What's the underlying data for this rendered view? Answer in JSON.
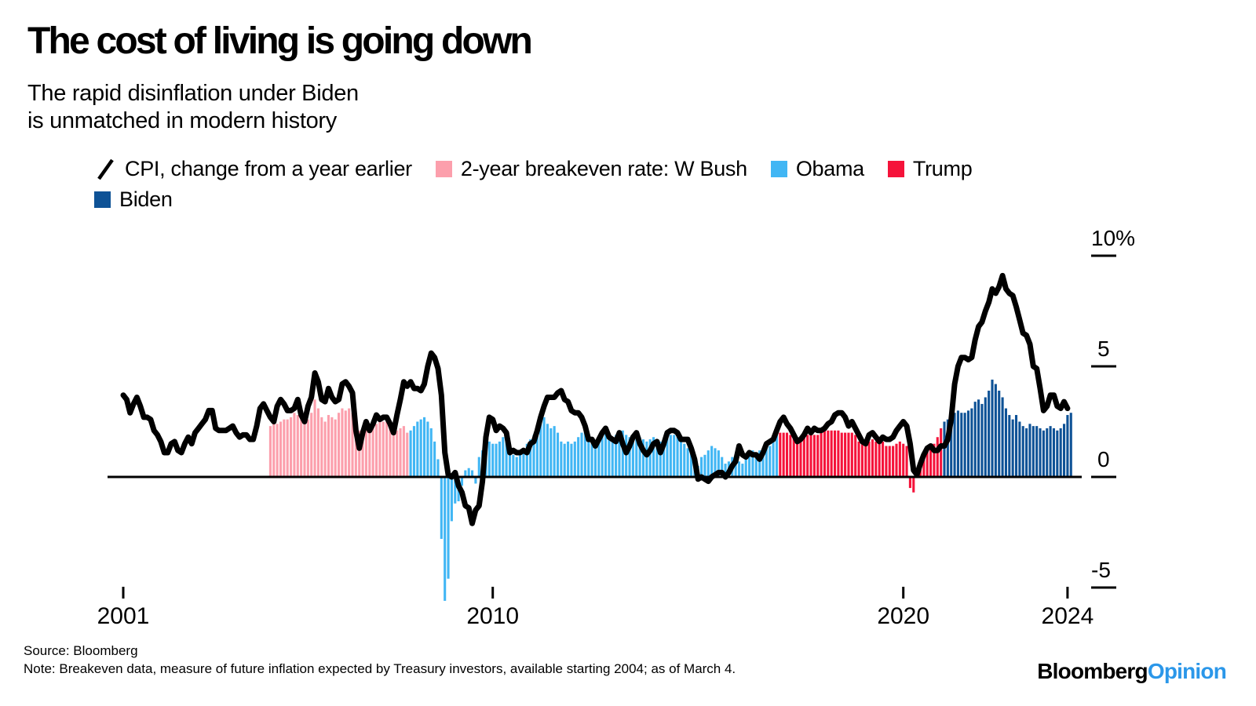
{
  "chart_data": {
    "type": "mixed",
    "title": "The cost of living is going down",
    "subtitle": [
      "The rapid disinflation under Biden",
      "is unmatched in modern history"
    ],
    "legend": {
      "position": "top",
      "items": [
        {
          "label": "CPI, change from a year earlier",
          "swatch": "line",
          "color": "#000000"
        },
        {
          "label": "2-year breakeven rate: W Bush",
          "swatch": "square",
          "color": "#FC9FAC"
        },
        {
          "label": "Obama",
          "swatch": "square",
          "color": "#41B6F4"
        },
        {
          "label": "Trump",
          "swatch": "square",
          "color": "#F5133A"
        },
        {
          "label": "Biden",
          "swatch": "square",
          "color": "#0E5296"
        }
      ]
    },
    "grid": false,
    "ylim": [
      -7,
      10
    ],
    "xlim": [
      2001,
      2024.4
    ],
    "y_ticks": [
      {
        "label": "10%",
        "value": 10
      },
      {
        "label": "5",
        "value": 5
      },
      {
        "label": "0",
        "value": 0
      },
      {
        "label": "-5",
        "value": -5
      }
    ],
    "x_ticks": [
      {
        "label": "2001",
        "year": 2001
      },
      {
        "label": "2010",
        "year": 2010
      },
      {
        "label": "2020",
        "year": 2020
      },
      {
        "label": "2024",
        "year": 2024
      }
    ],
    "line_series": {
      "name": "CPI, change from a year earlier",
      "color": "#000000",
      "start_year": 2001.0,
      "points_per_year": 12,
      "values": [
        3.7,
        3.5,
        2.9,
        3.3,
        3.6,
        3.2,
        2.7,
        2.7,
        2.6,
        2.1,
        1.9,
        1.6,
        1.1,
        1.1,
        1.5,
        1.6,
        1.2,
        1.1,
        1.5,
        1.8,
        1.5,
        2.0,
        2.2,
        2.4,
        2.6,
        3.0,
        3.0,
        2.2,
        2.1,
        2.1,
        2.1,
        2.2,
        2.3,
        2.0,
        1.8,
        1.9,
        1.9,
        1.7,
        1.7,
        2.3,
        3.1,
        3.3,
        3.0,
        2.7,
        2.5,
        3.2,
        3.5,
        3.3,
        3.0,
        3.0,
        3.1,
        3.5,
        2.8,
        2.5,
        3.2,
        3.6,
        4.7,
        4.3,
        3.5,
        3.4,
        4.0,
        3.6,
        3.4,
        3.5,
        4.2,
        4.3,
        4.1,
        3.8,
        2.1,
        1.3,
        2.0,
        2.5,
        2.1,
        2.4,
        2.8,
        2.6,
        2.7,
        2.7,
        2.4,
        2.0,
        2.8,
        3.5,
        4.3,
        4.1,
        4.3,
        4.0,
        4.0,
        3.9,
        4.2,
        5.0,
        5.6,
        5.4,
        4.9,
        3.7,
        1.1,
        0.1,
        0.0,
        0.2,
        -0.4,
        -0.7,
        -1.3,
        -1.4,
        -2.1,
        -1.5,
        -1.3,
        -0.2,
        1.8,
        2.7,
        2.6,
        2.1,
        2.3,
        2.2,
        2.0,
        1.1,
        1.2,
        1.1,
        1.1,
        1.2,
        1.1,
        1.5,
        1.6,
        2.1,
        2.7,
        3.2,
        3.6,
        3.6,
        3.6,
        3.8,
        3.9,
        3.5,
        3.4,
        3.0,
        2.9,
        2.9,
        2.7,
        2.3,
        1.7,
        1.7,
        1.4,
        1.7,
        2.0,
        2.2,
        1.8,
        1.7,
        1.6,
        2.0,
        1.5,
        1.1,
        1.4,
        1.8,
        2.0,
        1.5,
        1.2,
        1.0,
        1.2,
        1.5,
        1.6,
        1.1,
        1.5,
        2.0,
        2.1,
        2.1,
        2.0,
        1.7,
        1.7,
        1.7,
        1.3,
        0.8,
        -0.1,
        0.0,
        -0.1,
        -0.2,
        0.0,
        0.1,
        0.2,
        0.2,
        0.0,
        0.2,
        0.5,
        0.7,
        1.4,
        1.0,
        0.9,
        1.1,
        1.0,
        1.0,
        0.8,
        1.1,
        1.5,
        1.6,
        1.7,
        2.1,
        2.5,
        2.7,
        2.4,
        2.2,
        1.9,
        1.6,
        1.7,
        1.9,
        2.2,
        2.0,
        2.2,
        2.1,
        2.1,
        2.2,
        2.4,
        2.5,
        2.8,
        2.9,
        2.9,
        2.7,
        2.3,
        2.5,
        2.2,
        1.9,
        1.6,
        1.5,
        1.9,
        2.0,
        1.8,
        1.6,
        1.8,
        1.7,
        1.7,
        1.8,
        2.1,
        2.3,
        2.5,
        2.3,
        1.5,
        0.3,
        0.1,
        0.6,
        1.0,
        1.3,
        1.4,
        1.2,
        1.2,
        1.4,
        1.4,
        1.7,
        2.6,
        4.2,
        5.0,
        5.4,
        5.4,
        5.3,
        5.4,
        6.2,
        6.8,
        7.0,
        7.5,
        7.9,
        8.5,
        8.3,
        8.6,
        9.1,
        8.5,
        8.3,
        8.2,
        7.7,
        7.1,
        6.5,
        6.4,
        6.0,
        5.0,
        4.9,
        4.0,
        3.0,
        3.2,
        3.7,
        3.7,
        3.2,
        3.1,
        3.4,
        3.1
      ]
    },
    "bar_series": {
      "name": "2-year breakeven rate",
      "start_year": 2004.5833,
      "points_per_year": 12,
      "segments": [
        {
          "president": "W Bush",
          "color": "#FC9FAC",
          "months": 41
        },
        {
          "president": "Obama",
          "color": "#41B6F4",
          "months": 108
        },
        {
          "president": "Trump",
          "color": "#F5133A",
          "months": 48
        },
        {
          "president": "Biden",
          "color": "#0E5296",
          "months": 38
        }
      ],
      "values": [
        2.3,
        2.5,
        2.4,
        2.5,
        2.6,
        2.6,
        2.7,
        2.9,
        2.8,
        2.6,
        2.5,
        2.6,
        2.9,
        3.5,
        3.1,
        2.7,
        2.5,
        2.8,
        2.7,
        2.6,
        2.9,
        3.1,
        3.0,
        3.1,
        2.9,
        2.3,
        2.1,
        2.2,
        2.3,
        2.2,
        2.4,
        2.4,
        2.5,
        2.5,
        2.5,
        2.4,
        2.2,
        2.1,
        2.2,
        2.3,
        2.0,
        2.1,
        2.3,
        2.5,
        2.6,
        2.7,
        2.5,
        2.2,
        1.6,
        0.8,
        -2.8,
        -5.6,
        -4.6,
        -2.0,
        -1.2,
        -1.1,
        -0.4,
        0.3,
        0.4,
        0.3,
        -0.3,
        0.9,
        1.2,
        1.4,
        1.6,
        1.5,
        1.5,
        1.6,
        1.8,
        1.6,
        1.2,
        1.0,
        0.9,
        1.0,
        1.3,
        1.5,
        1.7,
        1.9,
        2.1,
        2.5,
        2.7,
        2.4,
        2.2,
        2.3,
        2.0,
        1.6,
        1.5,
        1.6,
        1.5,
        1.6,
        1.8,
        2.0,
        2.1,
        1.9,
        1.7,
        1.6,
        1.8,
        2.0,
        2.1,
        1.9,
        1.8,
        1.9,
        2.0,
        2.1,
        1.9,
        1.8,
        1.6,
        1.7,
        1.8,
        1.7,
        1.6,
        1.7,
        1.8,
        1.7,
        1.6,
        1.7,
        1.8,
        1.9,
        1.9,
        1.8,
        1.7,
        1.5,
        1.3,
        1.2,
        0.9,
        0.5,
        0.9,
        1.0,
        1.2,
        1.4,
        1.3,
        1.2,
        0.9,
        0.6,
        0.7,
        0.9,
        0.8,
        0.7,
        0.6,
        0.9,
        1.1,
        1.2,
        1.1,
        1.2,
        1.3,
        1.3,
        1.4,
        1.7,
        1.9,
        2.0,
        2.0,
        2.0,
        1.9,
        1.8,
        1.7,
        1.7,
        1.8,
        1.9,
        1.9,
        1.9,
        1.9,
        2.0,
        2.1,
        2.1,
        2.1,
        2.1,
        2.1,
        2.0,
        2.0,
        2.0,
        2.0,
        1.9,
        1.6,
        1.5,
        1.6,
        1.6,
        1.7,
        1.6,
        1.5,
        1.6,
        1.4,
        1.4,
        1.4,
        1.5,
        1.6,
        1.5,
        1.4,
        -0.5,
        -0.7,
        0.2,
        0.6,
        0.9,
        1.2,
        1.4,
        1.5,
        1.8,
        2.2,
        2.5,
        2.6,
        2.7,
        2.9,
        3.0,
        2.9,
        2.9,
        3.0,
        3.1,
        3.4,
        3.5,
        3.3,
        3.6,
        3.9,
        4.4,
        4.2,
        3.9,
        3.6,
        3.1,
        2.8,
        2.6,
        2.8,
        2.5,
        2.3,
        2.2,
        2.4,
        2.3,
        2.3,
        2.2,
        2.1,
        2.2,
        2.3,
        2.2,
        2.1,
        2.2,
        2.4,
        2.8,
        2.9
      ]
    }
  },
  "footer": {
    "source": "Source: Bloomberg",
    "note": "Note: Breakeven data, measure of future inflation expected by Treasury investors, available starting 2004; as of March 4."
  },
  "logo": {
    "black": "Bloomberg",
    "accent": "Opinion",
    "accent_color": "#2B97E9"
  }
}
